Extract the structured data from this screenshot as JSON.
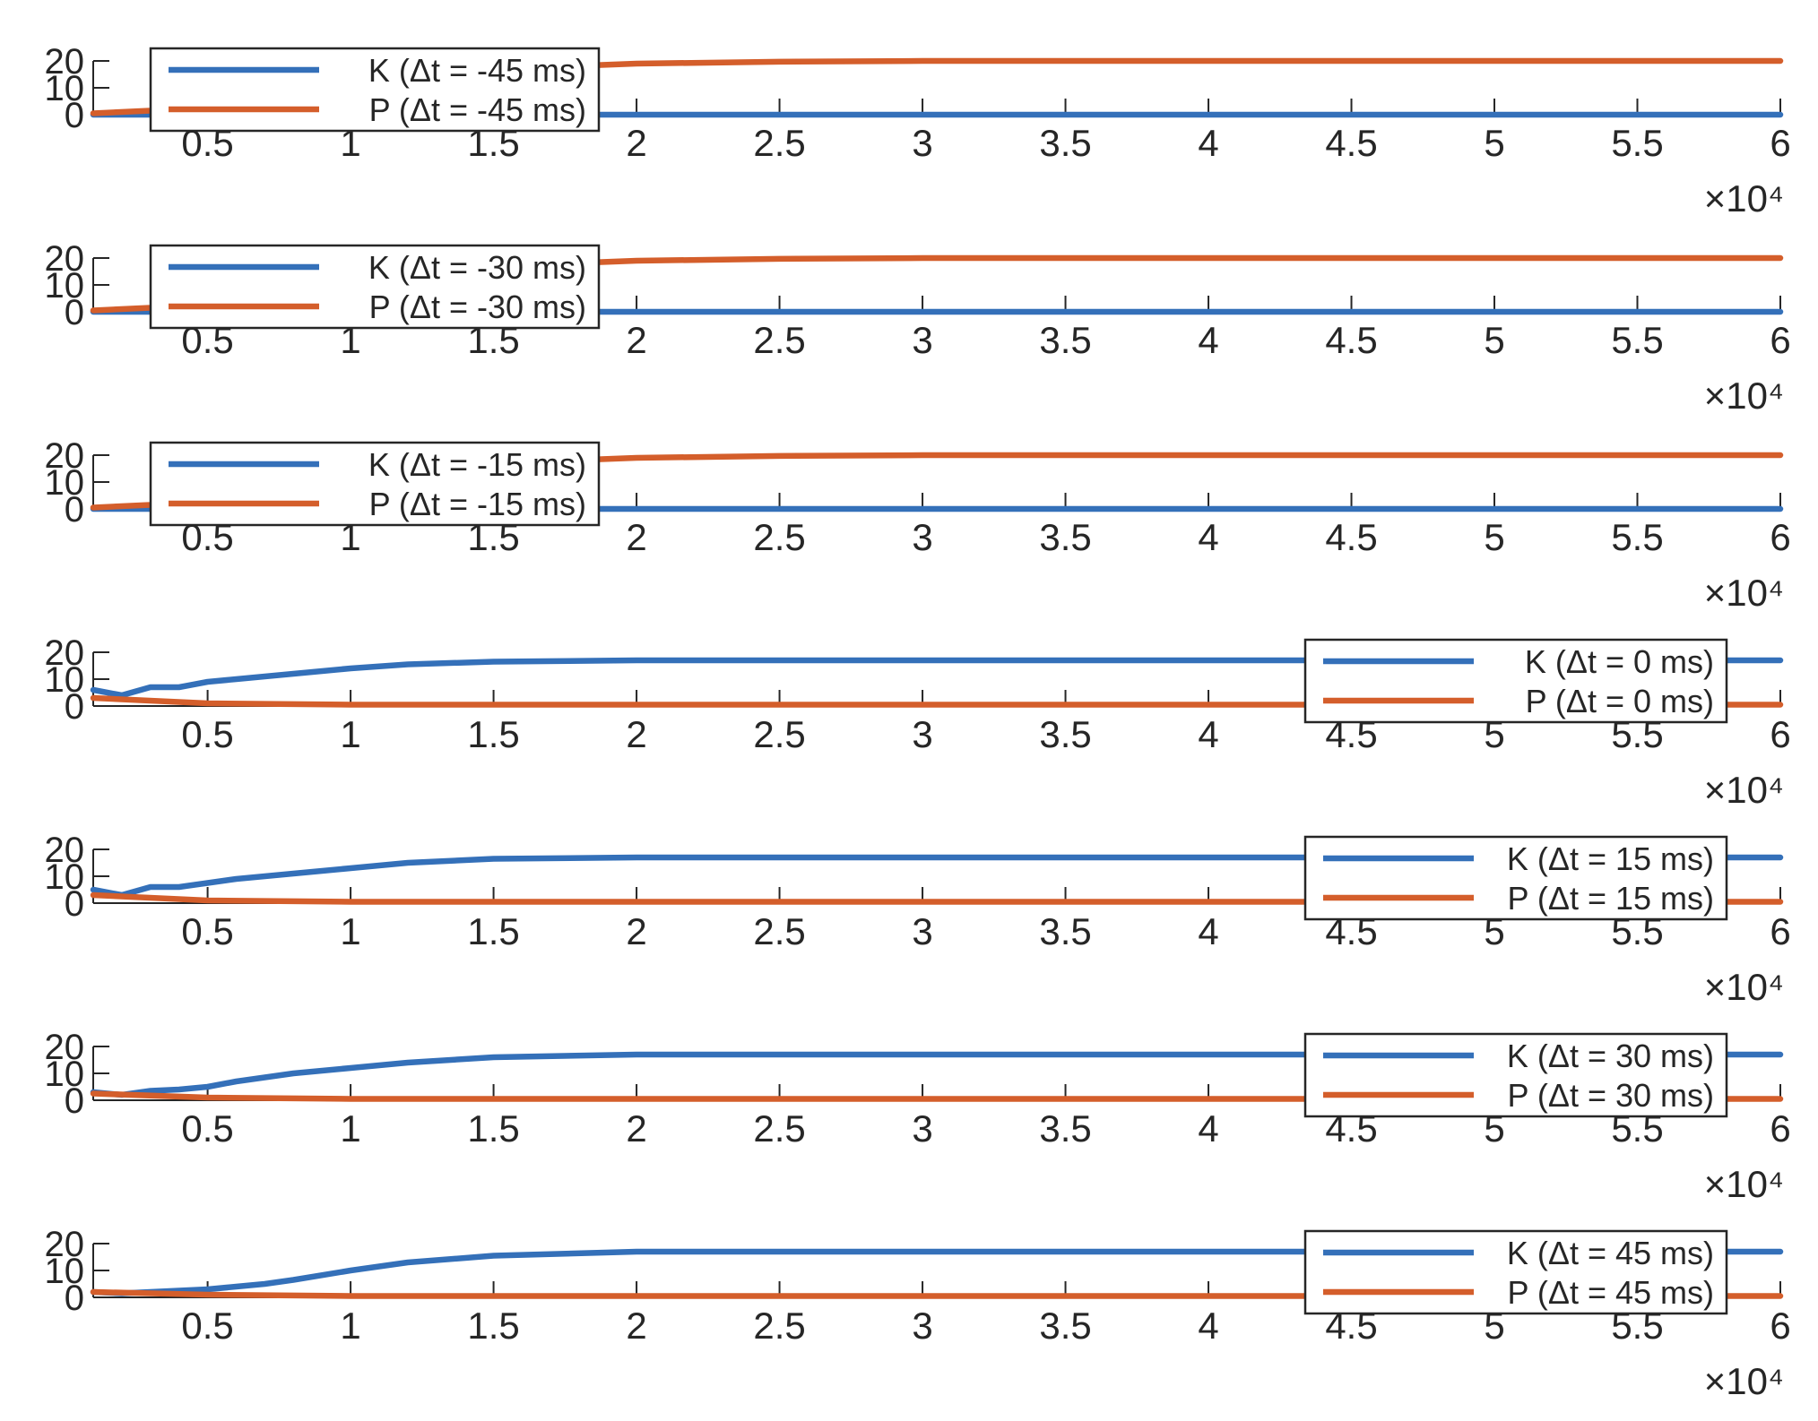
{
  "chart_data": [
    {
      "type": "line",
      "xlim": [
        0.1,
        6
      ],
      "ylim": [
        0,
        20
      ],
      "x_multiplier": "×10⁴",
      "xticks": [
        "0.5",
        "1",
        "1.5",
        "2",
        "2.5",
        "3",
        "3.5",
        "4",
        "4.5",
        "5",
        "5.5",
        "6"
      ],
      "yticks": [
        "0",
        "10",
        "20"
      ],
      "legend_position": "top-left",
      "series": [
        {
          "name": "K (Δt = -45 ms)",
          "color": "#3470B9",
          "x": [
            0.1,
            0.3,
            0.5,
            1,
            2,
            3,
            4,
            5,
            6
          ],
          "y": [
            0,
            0,
            0,
            0,
            0,
            0,
            0,
            0,
            0
          ]
        },
        {
          "name": "P (Δt = -45 ms)",
          "color": "#D45E2B",
          "x": [
            0.1,
            0.3,
            0.5,
            1,
            1.5,
            2,
            2.5,
            3,
            4,
            5,
            6
          ],
          "y": [
            0.5,
            1.5,
            3,
            12,
            17,
            19,
            19.7,
            20,
            20,
            20,
            20
          ]
        }
      ]
    },
    {
      "type": "line",
      "xlim": [
        0.1,
        6
      ],
      "ylim": [
        0,
        20
      ],
      "x_multiplier": "×10⁴",
      "xticks": [
        "0.5",
        "1",
        "1.5",
        "2",
        "2.5",
        "3",
        "3.5",
        "4",
        "4.5",
        "5",
        "5.5",
        "6"
      ],
      "yticks": [
        "0",
        "10",
        "20"
      ],
      "legend_position": "top-left",
      "series": [
        {
          "name": "K (Δt = -30 ms)",
          "color": "#3470B9",
          "x": [
            0.1,
            0.3,
            0.5,
            1,
            2,
            3,
            4,
            5,
            6
          ],
          "y": [
            0,
            0,
            0,
            0,
            0,
            0,
            0,
            0,
            0
          ]
        },
        {
          "name": "P (Δt = -30 ms)",
          "color": "#D45E2B",
          "x": [
            0.1,
            0.3,
            0.5,
            1,
            1.5,
            2,
            2.5,
            3,
            4,
            5,
            6
          ],
          "y": [
            0.5,
            1.5,
            3,
            12,
            17,
            19,
            19.7,
            20,
            20,
            20,
            20
          ]
        }
      ]
    },
    {
      "type": "line",
      "xlim": [
        0.1,
        6
      ],
      "ylim": [
        0,
        20
      ],
      "x_multiplier": "×10⁴",
      "xticks": [
        "0.5",
        "1",
        "1.5",
        "2",
        "2.5",
        "3",
        "3.5",
        "4",
        "4.5",
        "5",
        "5.5",
        "6"
      ],
      "yticks": [
        "0",
        "10",
        "20"
      ],
      "legend_position": "top-left",
      "series": [
        {
          "name": "K (Δt = -15 ms)",
          "color": "#3470B9",
          "x": [
            0.1,
            0.3,
            0.5,
            1,
            2,
            3,
            4,
            5,
            6
          ],
          "y": [
            0,
            0,
            0,
            0,
            0,
            0,
            0,
            0,
            0
          ]
        },
        {
          "name": "P (Δt = -15 ms)",
          "color": "#D45E2B",
          "x": [
            0.1,
            0.3,
            0.5,
            1,
            1.5,
            2,
            2.5,
            3,
            4,
            5,
            6
          ],
          "y": [
            0.5,
            1.5,
            3,
            12,
            17,
            19,
            19.7,
            20,
            20,
            20,
            20
          ]
        }
      ]
    },
    {
      "type": "line",
      "xlim": [
        0.1,
        6
      ],
      "ylim": [
        0,
        20
      ],
      "x_multiplier": "×10⁴",
      "xticks": [
        "0.5",
        "1",
        "1.5",
        "2",
        "2.5",
        "3",
        "3.5",
        "4",
        "4.5",
        "5",
        "5.5",
        "6"
      ],
      "yticks": [
        "0",
        "10",
        "20"
      ],
      "legend_position": "top-right",
      "series": [
        {
          "name": "K (Δt = 0 ms)",
          "color": "#3470B9",
          "x": [
            0.1,
            0.2,
            0.3,
            0.4,
            0.5,
            0.6,
            0.7,
            0.8,
            1,
            1.2,
            1.5,
            2,
            2.5,
            3,
            4,
            5,
            6
          ],
          "y": [
            6,
            4,
            7,
            7,
            9,
            10,
            11,
            12,
            14,
            15.5,
            16.5,
            17,
            17,
            17,
            17,
            17,
            17
          ]
        },
        {
          "name": "P (Δt = 0 ms)",
          "color": "#D45E2B",
          "x": [
            0.1,
            0.5,
            1,
            2,
            3,
            4,
            5,
            6
          ],
          "y": [
            3,
            1,
            0.5,
            0.5,
            0.5,
            0.5,
            0.5,
            0.5
          ]
        }
      ]
    },
    {
      "type": "line",
      "xlim": [
        0.1,
        6
      ],
      "ylim": [
        0,
        20
      ],
      "x_multiplier": "×10⁴",
      "xticks": [
        "0.5",
        "1",
        "1.5",
        "2",
        "2.5",
        "3",
        "3.5",
        "4",
        "4.5",
        "5",
        "5.5",
        "6"
      ],
      "yticks": [
        "0",
        "10",
        "20"
      ],
      "legend_position": "top-right",
      "series": [
        {
          "name": "K (Δt = 15 ms)",
          "color": "#3470B9",
          "x": [
            0.1,
            0.2,
            0.3,
            0.4,
            0.5,
            0.6,
            0.7,
            0.8,
            1,
            1.2,
            1.5,
            2,
            2.5,
            3,
            4,
            5,
            6
          ],
          "y": [
            5,
            3,
            6,
            6,
            7.5,
            9,
            10,
            11,
            13,
            15,
            16.5,
            17,
            17,
            17,
            17,
            17,
            17
          ]
        },
        {
          "name": "P (Δt = 15 ms)",
          "color": "#D45E2B",
          "x": [
            0.1,
            0.5,
            1,
            2,
            3,
            4,
            5,
            6
          ],
          "y": [
            3,
            1,
            0.5,
            0.5,
            0.5,
            0.5,
            0.5,
            0.5
          ]
        }
      ]
    },
    {
      "type": "line",
      "xlim": [
        0.1,
        6
      ],
      "ylim": [
        0,
        20
      ],
      "x_multiplier": "×10⁴",
      "xticks": [
        "0.5",
        "1",
        "1.5",
        "2",
        "2.5",
        "3",
        "3.5",
        "4",
        "4.5",
        "5",
        "5.5",
        "6"
      ],
      "yticks": [
        "0",
        "10",
        "20"
      ],
      "legend_position": "top-right",
      "series": [
        {
          "name": "K (Δt = 30 ms)",
          "color": "#3470B9",
          "x": [
            0.1,
            0.2,
            0.3,
            0.4,
            0.5,
            0.6,
            0.7,
            0.8,
            1,
            1.2,
            1.5,
            2,
            2.5,
            3,
            4,
            5,
            6
          ],
          "y": [
            3,
            2,
            3.5,
            4,
            5,
            7,
            8.5,
            10,
            12,
            14,
            16,
            17,
            17,
            17,
            17,
            17,
            17
          ]
        },
        {
          "name": "P (Δt = 30 ms)",
          "color": "#D45E2B",
          "x": [
            0.1,
            0.5,
            1,
            2,
            3,
            4,
            5,
            6
          ],
          "y": [
            2.5,
            1,
            0.5,
            0.5,
            0.5,
            0.5,
            0.5,
            0.5
          ]
        }
      ]
    },
    {
      "type": "line",
      "xlim": [
        0.1,
        6
      ],
      "ylim": [
        0,
        20
      ],
      "x_multiplier": "×10⁴",
      "xticks": [
        "0.5",
        "1",
        "1.5",
        "2",
        "2.5",
        "3",
        "3.5",
        "4",
        "4.5",
        "5",
        "5.5",
        "6"
      ],
      "yticks": [
        "0",
        "10",
        "20"
      ],
      "legend_position": "top-right",
      "series": [
        {
          "name": "K (Δt = 45 ms)",
          "color": "#3470B9",
          "x": [
            0.1,
            0.2,
            0.3,
            0.4,
            0.5,
            0.6,
            0.7,
            0.8,
            1,
            1.2,
            1.5,
            2,
            2.5,
            3,
            4,
            5,
            6
          ],
          "y": [
            2,
            1.5,
            2,
            2.5,
            3,
            4,
            5,
            6.5,
            10,
            13,
            15.5,
            17,
            17,
            17,
            17,
            17,
            17
          ]
        },
        {
          "name": "P (Δt = 45 ms)",
          "color": "#D45E2B",
          "x": [
            0.1,
            0.5,
            1,
            2,
            3,
            4,
            5,
            6
          ],
          "y": [
            2,
            1,
            0.5,
            0.5,
            0.5,
            0.5,
            0.5,
            0.5
          ]
        }
      ]
    }
  ]
}
